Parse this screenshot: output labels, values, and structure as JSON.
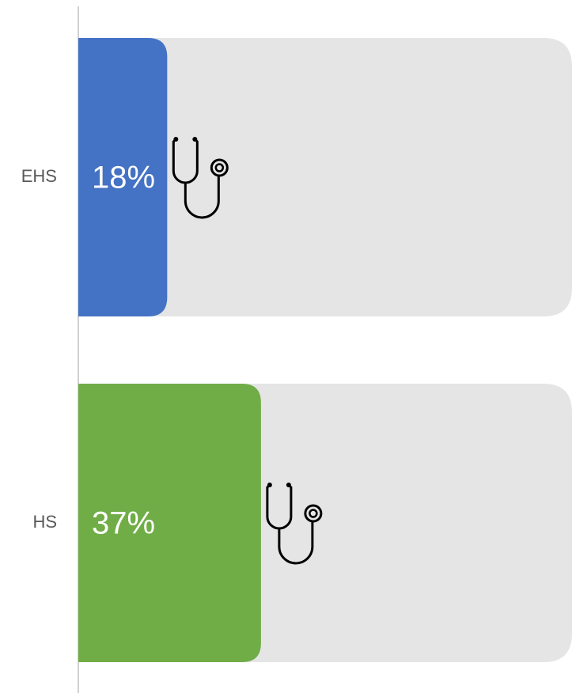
{
  "chart_data": {
    "type": "bar",
    "orientation": "horizontal",
    "categories": [
      "EHS",
      "HS"
    ],
    "values": [
      18,
      37
    ],
    "value_labels": [
      "18%",
      "37%"
    ],
    "colors": [
      "#4472c4",
      "#70ad47"
    ],
    "track_color": "#e5e5e5",
    "xlim": [
      0,
      100
    ]
  }
}
